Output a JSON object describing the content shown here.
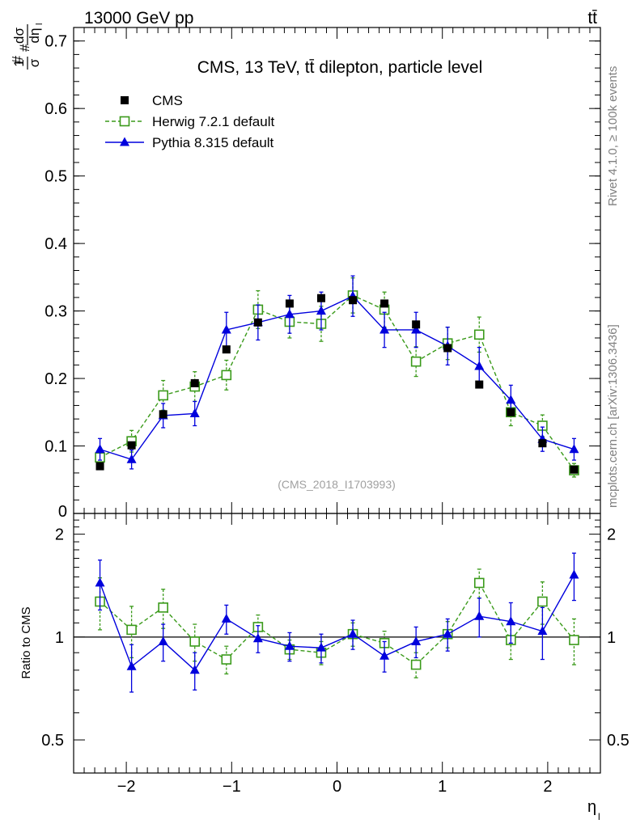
{
  "header": {
    "beam": "13000 GeV pp",
    "process": "tt̄",
    "title": "CMS, 13 TeV, tt̄ dilepton, particle level",
    "watermark": "(CMS_2018_I1703993)",
    "side_text_top": "Rivet 4.1.0, ≥ 100k events",
    "side_text_bottom": "mcplots.cern.ch [arXiv:1306.3436]"
  },
  "colors": {
    "data": "#000000",
    "herwig": "#3a9a1a",
    "pythia": "#0000dd",
    "watermark": "#a0a0a0",
    "side_text": "#808080"
  },
  "chart_data": {
    "type": "scatter",
    "title": "CMS, 13 TeV, tt̄ dilepton, particle level",
    "xlabel": "η_l",
    "ylabel": "#frac{1}{#sigma}#frac{d#sigma}{d#eta_{l}}",
    "ratio_ylabel": "Ratio to CMS",
    "xlim": [
      -2.5,
      2.5
    ],
    "ylim": [
      0,
      0.72
    ],
    "ratio_ylim": [
      0.4,
      2.3
    ],
    "x_ticks": [
      -2,
      -1,
      0,
      1,
      2
    ],
    "x_tick_labels": [
      "−2",
      "−1",
      "0",
      "1",
      "2"
    ],
    "y_ticks": [
      0,
      0.1,
      0.2,
      0.3,
      0.4,
      0.5,
      0.6,
      0.7
    ],
    "y_tick_labels": [
      "0",
      "0.1",
      "0.2",
      "0.3",
      "0.4",
      "0.5",
      "0.6",
      "0.7"
    ],
    "ratio_ticks": [
      0.5,
      1,
      2
    ],
    "ratio_tick_labels": [
      "0.5",
      "1",
      "2"
    ],
    "x": [
      -2.25,
      -1.95,
      -1.65,
      -1.35,
      -1.05,
      -0.75,
      -0.45,
      -0.15,
      0.15,
      0.45,
      0.75,
      1.05,
      1.35,
      1.65,
      1.95,
      2.25
    ],
    "legend": {
      "position": "top-left",
      "entries": [
        "CMS",
        "Herwig 7.2.1 default",
        "Pythia 8.315 default"
      ]
    },
    "series": [
      {
        "name": "CMS",
        "style": "data",
        "values": [
          0.07,
          0.101,
          0.147,
          0.193,
          0.243,
          0.283,
          0.311,
          0.319,
          0.316,
          0.311,
          0.28,
          0.245,
          0.191,
          0.15,
          0.104,
          0.065
        ],
        "errors": [
          0.003,
          0.003,
          0.003,
          0.003,
          0.003,
          0.003,
          0.003,
          0.003,
          0.003,
          0.003,
          0.003,
          0.003,
          0.003,
          0.003,
          0.003,
          0.003
        ]
      },
      {
        "name": "Herwig 7.2.1 default",
        "style": "open-square-dashed",
        "values": [
          0.083,
          0.107,
          0.175,
          0.188,
          0.205,
          0.302,
          0.284,
          0.281,
          0.323,
          0.302,
          0.225,
          0.252,
          0.265,
          0.15,
          0.13,
          0.064
        ],
        "errors": [
          0.014,
          0.016,
          0.022,
          0.022,
          0.022,
          0.028,
          0.024,
          0.026,
          0.026,
          0.026,
          0.022,
          0.024,
          0.026,
          0.02,
          0.016,
          0.01
        ],
        "ratio": [
          1.27,
          1.05,
          1.22,
          0.97,
          0.86,
          1.07,
          0.92,
          0.9,
          1.02,
          0.96,
          0.83,
          1.02,
          1.44,
          0.98,
          1.27,
          0.98
        ],
        "ratio_errors": [
          0.22,
          0.18,
          0.16,
          0.12,
          0.08,
          0.09,
          0.06,
          0.07,
          0.08,
          0.08,
          0.07,
          0.09,
          0.14,
          0.12,
          0.18,
          0.15
        ]
      },
      {
        "name": "Pythia 8.315 default",
        "style": "filled-triangle-solid",
        "values": [
          0.095,
          0.08,
          0.145,
          0.148,
          0.272,
          0.283,
          0.295,
          0.3,
          0.322,
          0.272,
          0.272,
          0.248,
          0.218,
          0.168,
          0.11,
          0.095
        ],
        "errors": [
          0.016,
          0.014,
          0.018,
          0.018,
          0.026,
          0.026,
          0.028,
          0.028,
          0.03,
          0.026,
          0.026,
          0.028,
          0.028,
          0.022,
          0.018,
          0.016
        ],
        "ratio": [
          1.44,
          0.82,
          0.97,
          0.8,
          1.13,
          0.99,
          0.94,
          0.93,
          1.02,
          0.88,
          0.97,
          1.02,
          1.15,
          1.11,
          1.04,
          1.52
        ],
        "ratio_errors": [
          0.24,
          0.13,
          0.12,
          0.1,
          0.11,
          0.09,
          0.09,
          0.09,
          0.1,
          0.09,
          0.1,
          0.11,
          0.15,
          0.15,
          0.18,
          0.24
        ]
      }
    ]
  }
}
